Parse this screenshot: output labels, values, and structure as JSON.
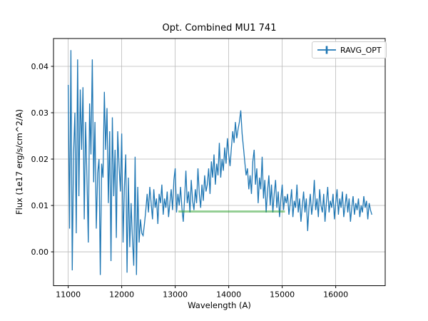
{
  "figure": {
    "background": "#ffffff"
  },
  "chart_data": {
    "type": "line",
    "title": "Opt. Combined MU1 741",
    "xlabel": "Wavelength (A)",
    "ylabel": "Flux (1e17 erg/s/cm^2/A)",
    "xlim": [
      10725,
      16925
    ],
    "ylim": [
      -0.0073,
      0.046
    ],
    "xticks": [
      11000,
      12000,
      13000,
      14000,
      15000,
      16000
    ],
    "xtick_labels": [
      "11000",
      "12000",
      "13000",
      "14000",
      "15000",
      "16000"
    ],
    "yticks": [
      0.0,
      0.01,
      0.02,
      0.03,
      0.04
    ],
    "ytick_labels": [
      "0.00",
      "0.01",
      "0.02",
      "0.03",
      "0.04"
    ],
    "grid": true,
    "legend": {
      "position": "upper right",
      "entries": [
        {
          "label": "RAVG_OPT",
          "color": "#1f77b4",
          "marker": "errorbar"
        }
      ]
    },
    "series": [
      {
        "name": "RAVG_OPT",
        "color": "#1f77b4",
        "line_width": 1.3,
        "x_start": 11000,
        "x_step": 25,
        "values": [
          0.036,
          0.005,
          0.0435,
          -0.004,
          0.021,
          0.03,
          0.004,
          0.0415,
          0.012,
          0.035,
          0.022,
          0.0355,
          0.007,
          0.028,
          0.016,
          0.002,
          0.032,
          0.021,
          0.0415,
          0.015,
          0.028,
          0.005,
          0.017,
          0.02,
          -0.005,
          0.019,
          0.016,
          0.0345,
          0.022,
          0.031,
          0.0105,
          0.026,
          -0.002,
          0.029,
          0.012,
          0.022,
          0.003,
          0.026,
          0.0185,
          0.013,
          0.0255,
          0.002,
          0.014,
          0.021,
          -0.0045,
          0.016,
          0.001,
          0.0105,
          0.003,
          -0.003,
          0.0205,
          -0.005,
          0.014,
          0.002,
          0.007,
          0.004,
          0.0035,
          0.006,
          0.009,
          0.0125,
          0.0085,
          0.014,
          0.0105,
          0.007,
          0.0135,
          0.0095,
          0.0115,
          0.006,
          0.0125,
          0.0105,
          0.0145,
          0.008,
          0.0115,
          0.0095,
          0.013,
          0.0075,
          0.0105,
          0.0135,
          0.009,
          0.0155,
          0.018,
          0.0085,
          0.0125,
          0.01,
          0.014,
          0.0095,
          0.0065,
          0.0115,
          0.0175,
          0.0105,
          0.013,
          0.0085,
          0.0155,
          0.011,
          0.009,
          0.0135,
          0.0105,
          0.018,
          0.0125,
          0.0095,
          0.0145,
          0.011,
          0.0165,
          0.013,
          0.0145,
          0.018,
          0.0125,
          0.0195,
          0.016,
          0.021,
          0.0145,
          0.019,
          0.0165,
          0.0235,
          0.016,
          0.02,
          0.0175,
          0.0225,
          0.019,
          0.0245,
          0.021,
          0.0185,
          0.0225,
          0.026,
          0.0235,
          0.028,
          0.0245,
          0.0265,
          0.028,
          0.0305,
          0.0255,
          0.0225,
          0.0195,
          0.0165,
          0.018,
          0.0135,
          0.0165,
          0.0125,
          0.0195,
          0.022,
          0.0145,
          0.018,
          0.0105,
          0.016,
          0.0135,
          0.0205,
          0.0115,
          0.0155,
          0.0085,
          0.013,
          0.0165,
          0.01,
          0.0145,
          0.0085,
          0.0125,
          0.0155,
          0.0095,
          0.013,
          0.0075,
          0.0115,
          0.0145,
          0.009,
          0.012,
          0.0105,
          0.0125,
          0.008,
          0.0105,
          0.0135,
          0.0075,
          0.011,
          0.0095,
          0.0145,
          0.0085,
          0.0115,
          0.0065,
          0.01,
          0.013,
          0.0085,
          0.0115,
          0.0045,
          0.0095,
          0.0125,
          0.008,
          0.0105,
          0.0155,
          0.009,
          0.0115,
          0.0075,
          0.0135,
          0.01,
          0.0085,
          0.0125,
          0.0065,
          0.0105,
          0.014,
          0.0085,
          0.011,
          0.0095,
          0.0125,
          0.007,
          0.0105,
          0.0135,
          0.008,
          0.0115,
          0.0095,
          0.013,
          0.0075,
          0.01,
          0.0125,
          0.0085,
          0.0115,
          0.0065,
          0.0095,
          0.012,
          0.008,
          0.0105,
          0.009,
          0.0115,
          0.0075,
          0.01,
          0.0085,
          0.012,
          0.0095,
          0.011,
          0.007,
          0.0105,
          0.009,
          0.008
        ]
      },
      {
        "name": "average-segment",
        "color": "#2ca02c",
        "opacity": 0.5,
        "line_width": 3,
        "x": [
          13060,
          15050
        ],
        "y": [
          0.0087,
          0.0087
        ]
      }
    ]
  },
  "colors": {
    "spectrum": "#1f77b4",
    "average_line": "#2ca02c",
    "grid": "#b8b8b8",
    "axes": "#000000",
    "tick_label": "#000000",
    "legend_border": "#cccccc"
  }
}
